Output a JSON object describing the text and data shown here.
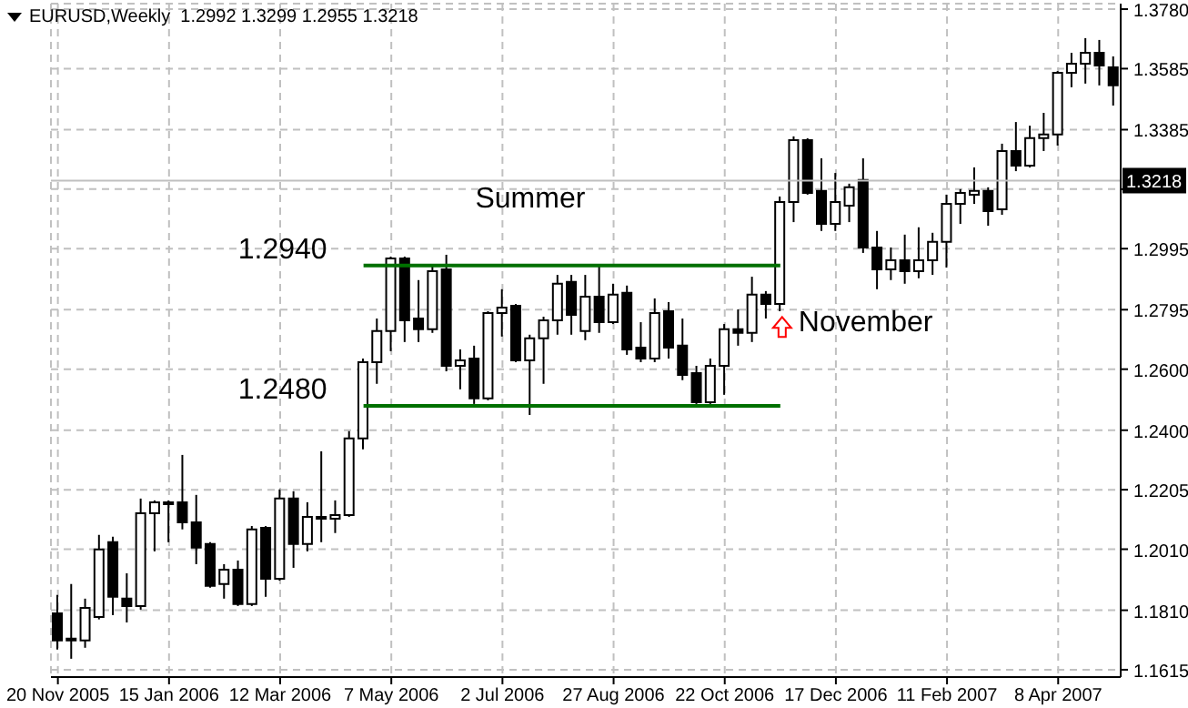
{
  "chart_data": {
    "type": "candlestick",
    "title": "EURUSD,Weekly  1.2992 1.3299 1.2955 1.3218",
    "color": "#000000",
    "categories": [
      "20 Nov 2005",
      null,
      null,
      null,
      null,
      null,
      null,
      null,
      "15 Jan 2006",
      null,
      null,
      null,
      null,
      null,
      null,
      null,
      "12 Mar 2006",
      null,
      null,
      null,
      null,
      null,
      null,
      null,
      "7 May 2006",
      null,
      null,
      null,
      null,
      null,
      null,
      null,
      "2 Jul 2006",
      null,
      null,
      null,
      null,
      null,
      null,
      null,
      "27 Aug 2006",
      null,
      null,
      null,
      null,
      null,
      null,
      null,
      "22 Oct 2006",
      null,
      null,
      null,
      null,
      null,
      null,
      null,
      "17 Dec 2006",
      null,
      null,
      null,
      null,
      null,
      null,
      null,
      "11 Feb 2007",
      null,
      null,
      null,
      null,
      null,
      null,
      null,
      "8 Apr 2007",
      null,
      null,
      null,
      null
    ],
    "ohlc": [
      [
        1.18,
        1.186,
        1.1681,
        1.1711
      ],
      [
        1.1711,
        1.1896,
        1.1651,
        1.1714
      ],
      [
        1.1711,
        1.1848,
        1.1687,
        1.1818
      ],
      [
        1.1788,
        1.2057,
        1.178,
        1.2009
      ],
      [
        1.2033,
        1.2051,
        1.1794,
        1.1854
      ],
      [
        1.1848,
        1.1931,
        1.177,
        1.1824
      ],
      [
        1.1824,
        1.2176,
        1.1812,
        1.2128
      ],
      [
        1.2128,
        1.217,
        1.2003,
        1.2164
      ],
      [
        1.2164,
        1.217,
        1.2033,
        1.2158
      ],
      [
        1.2164,
        1.2319,
        1.2075,
        1.2098
      ],
      [
        1.2098,
        1.2188,
        1.1961,
        1.2015
      ],
      [
        1.2027,
        1.2033,
        1.1884,
        1.189
      ],
      [
        1.1896,
        1.1961,
        1.1848,
        1.1943
      ],
      [
        1.1943,
        1.1973,
        1.1824,
        1.183
      ],
      [
        1.183,
        1.2086,
        1.1824,
        1.2075
      ],
      [
        1.208,
        1.2086,
        1.1854,
        1.1913
      ],
      [
        1.1913,
        1.2206,
        1.1907,
        1.2176
      ],
      [
        1.2176,
        1.22,
        1.1949,
        1.2027
      ],
      [
        1.2027,
        1.2164,
        1.2003,
        1.2116
      ],
      [
        1.2116,
        1.2331,
        1.2033,
        1.211
      ],
      [
        1.211,
        1.217,
        1.2063,
        1.2122
      ],
      [
        1.2122,
        1.2397,
        1.2116,
        1.2373
      ],
      [
        1.2373,
        1.2635,
        1.2337,
        1.2623
      ],
      [
        1.2623,
        1.2766,
        1.2552,
        1.2725
      ],
      [
        1.2725,
        1.2969,
        1.2659,
        1.2963
      ],
      [
        1.2963,
        1.2969,
        1.2689,
        1.276
      ],
      [
        1.2766,
        1.2892,
        1.2689,
        1.2731
      ],
      [
        1.2731,
        1.2939,
        1.2719,
        1.2921
      ],
      [
        1.2927,
        1.2975,
        1.2593,
        1.2611
      ],
      [
        1.2611,
        1.2665,
        1.2534,
        1.2629
      ],
      [
        1.2635,
        1.2677,
        1.2486,
        1.2504
      ],
      [
        1.2504,
        1.279,
        1.2498,
        1.2784
      ],
      [
        1.2784,
        1.2862,
        1.2707,
        1.2802
      ],
      [
        1.2808,
        1.2814,
        1.2623,
        1.2629
      ],
      [
        1.2629,
        1.2713,
        1.245,
        1.2701
      ],
      [
        1.2701,
        1.2772,
        1.2552,
        1.276
      ],
      [
        1.276,
        1.2909,
        1.2713,
        1.288
      ],
      [
        1.2886,
        1.2909,
        1.2713,
        1.2778
      ],
      [
        1.2725,
        1.2909,
        1.2695,
        1.2838
      ],
      [
        1.2838,
        1.2939,
        1.2719,
        1.2754
      ],
      [
        1.2754,
        1.288,
        1.2748,
        1.2844
      ],
      [
        1.285,
        1.2874,
        1.2647,
        1.2665
      ],
      [
        1.2671,
        1.2754,
        1.2623,
        1.2635
      ],
      [
        1.2635,
        1.2832,
        1.2623,
        1.2784
      ],
      [
        1.279,
        1.282,
        1.2635,
        1.2671
      ],
      [
        1.2677,
        1.2766,
        1.2564,
        1.2581
      ],
      [
        1.2587,
        1.2611,
        1.2486,
        1.2492
      ],
      [
        1.2492,
        1.2635,
        1.2486,
        1.2611
      ],
      [
        1.2611,
        1.2748,
        1.2516,
        1.2731
      ],
      [
        1.2731,
        1.2796,
        1.2677,
        1.2719
      ],
      [
        1.2719,
        1.2903,
        1.2689,
        1.2844
      ],
      [
        1.2844,
        1.2856,
        1.2766,
        1.2814
      ],
      [
        1.2814,
        1.3166,
        1.279,
        1.3148
      ],
      [
        1.3148,
        1.3363,
        1.3082,
        1.3351
      ],
      [
        1.3351,
        1.3357,
        1.3172,
        1.3178
      ],
      [
        1.3184,
        1.3291,
        1.3053,
        1.3076
      ],
      [
        1.3076,
        1.3243,
        1.3053,
        1.3148
      ],
      [
        1.3136,
        1.3208,
        1.3082,
        1.3196
      ],
      [
        1.322,
        1.3291,
        1.2981,
        1.2999
      ],
      [
        1.2999,
        1.3053,
        1.2862,
        1.2927
      ],
      [
        1.2927,
        1.2999,
        1.2892,
        1.2957
      ],
      [
        1.2957,
        1.3041,
        1.288,
        1.2921
      ],
      [
        1.2921,
        1.3065,
        1.2898,
        1.2957
      ],
      [
        1.2957,
        1.3047,
        1.2909,
        1.3017
      ],
      [
        1.3017,
        1.3172,
        1.2933,
        1.3142
      ],
      [
        1.3142,
        1.319,
        1.3076,
        1.3178
      ],
      [
        1.3172,
        1.3261,
        1.3142,
        1.3184
      ],
      [
        1.3184,
        1.3196,
        1.307,
        1.3118
      ],
      [
        1.3124,
        1.3339,
        1.3106,
        1.3315
      ],
      [
        1.3315,
        1.341,
        1.3249,
        1.3267
      ],
      [
        1.3267,
        1.3398,
        1.3261,
        1.3357
      ],
      [
        1.3357,
        1.344,
        1.3315,
        1.3369
      ],
      [
        1.3369,
        1.3577,
        1.3333,
        1.3571
      ],
      [
        1.3571,
        1.3637,
        1.3524,
        1.3601
      ],
      [
        1.3601,
        1.3685,
        1.3536,
        1.3637
      ],
      [
        1.3637,
        1.3679,
        1.353,
        1.3595
      ],
      [
        1.3589,
        1.3625,
        1.3464,
        1.353
      ]
    ],
    "series": [
      {
        "type": "line",
        "color": "#007000",
        "values": [
          null,
          null,
          null,
          null,
          null,
          null,
          null,
          null,
          null,
          null,
          null,
          null,
          null,
          null,
          null,
          null,
          null,
          null,
          null,
          null,
          null,
          null,
          1.294,
          1.294,
          1.294,
          1.294,
          1.294,
          1.294,
          1.294,
          1.294,
          1.294,
          1.294,
          1.294,
          1.294,
          1.294,
          1.294,
          1.294,
          1.294,
          1.294,
          1.294,
          1.294,
          1.294,
          1.294,
          1.294,
          1.294,
          1.294,
          1.294,
          1.294,
          1.294,
          1.294,
          1.294,
          1.294,
          1.294,
          null,
          null,
          null,
          null,
          null,
          null,
          null,
          null,
          null,
          null,
          null,
          null,
          null,
          null,
          null,
          null,
          null,
          null,
          null,
          null,
          null,
          null,
          null,
          null
        ]
      },
      {
        "type": "line",
        "color": "#007000",
        "values": [
          null,
          null,
          null,
          null,
          null,
          null,
          null,
          null,
          null,
          null,
          null,
          null,
          null,
          null,
          null,
          null,
          null,
          null,
          null,
          null,
          null,
          null,
          1.248,
          1.248,
          1.248,
          1.248,
          1.248,
          1.248,
          1.248,
          1.248,
          1.248,
          1.248,
          1.248,
          1.248,
          1.248,
          1.248,
          1.248,
          1.248,
          1.248,
          1.248,
          1.248,
          1.248,
          1.248,
          1.248,
          1.248,
          1.248,
          1.248,
          1.248,
          1.248,
          1.248,
          1.248,
          1.248,
          1.248,
          null,
          null,
          null,
          null,
          null,
          null,
          null,
          null,
          null,
          null,
          null,
          null,
          null,
          null,
          null,
          null,
          null,
          null,
          null,
          null,
          null,
          null,
          null,
          null
        ]
      }
    ],
    "ylim": [
      1.1591,
      1.3798
    ],
    "yticks": [
      {
        "value": 1.378,
        "label": "1.3780"
      },
      {
        "value": 1.3585,
        "label": "1.3585"
      },
      {
        "value": 1.3385,
        "label": "1.3385"
      },
      {
        "value": 1.319,
        "label": null
      },
      {
        "value": 1.2995,
        "label": "1.2995"
      },
      {
        "value": 1.2795,
        "label": "1.2795"
      },
      {
        "value": 1.26,
        "label": "1.2600"
      },
      {
        "value": 1.24,
        "label": "1.2400"
      },
      {
        "value": 1.2205,
        "label": "1.2205"
      },
      {
        "value": 1.201,
        "label": "1.2010"
      },
      {
        "value": 1.181,
        "label": "1.1810"
      },
      {
        "value": 1.1615,
        "label": "1.1615"
      }
    ],
    "ref_lines": [
      {
        "axis": "y",
        "value": 1.3218,
        "label": "1.3218",
        "color": "#c0c0c0"
      }
    ],
    "annotations": [
      "1.2940",
      "1.2480",
      "Summer",
      "November"
    ],
    "grid": true
  }
}
